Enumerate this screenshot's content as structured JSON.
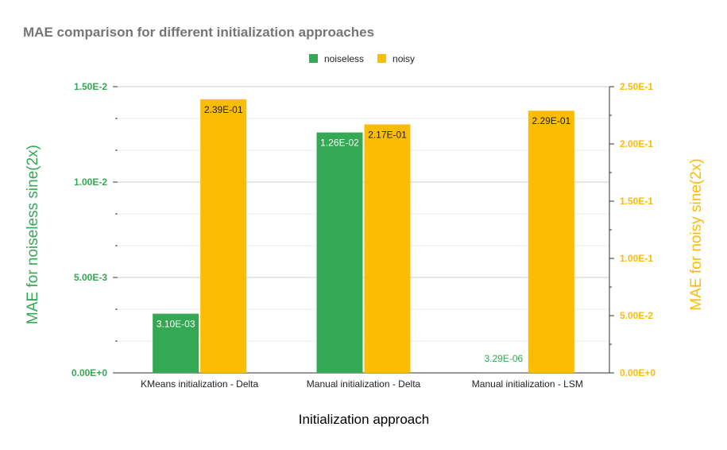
{
  "chart_data": {
    "type": "bar",
    "title": "MAE comparison for different initialization approaches",
    "xlabel": "Initialization approach",
    "ylabel_left": "MAE for noiseless sine(2x)",
    "ylabel_right": "MAE for noisy sine(2x)",
    "categories": [
      "KMeans initialization - Delta",
      "Manual initialization - Delta",
      "Manual initialization - LSM"
    ],
    "series": [
      {
        "name": "noiseless",
        "axis": "left",
        "color": "#34a853",
        "values": [
          0.0031,
          0.0126,
          3.29e-06
        ],
        "labels": [
          "3.10E-03",
          "1.26E-02",
          "3.29E-06"
        ]
      },
      {
        "name": "noisy",
        "axis": "right",
        "color": "#fbbc04",
        "values": [
          0.239,
          0.217,
          0.229
        ],
        "labels": [
          "2.39E-01",
          "2.17E-01",
          "2.29E-01"
        ]
      }
    ],
    "ylim_left": [
      0,
      0.015
    ],
    "ylim_right": [
      0,
      0.25
    ],
    "yticks_left": [
      "0.00E+0",
      "5.00E-3",
      "1.00E-2",
      "1.50E-2"
    ],
    "yticks_right": [
      "0.00E+0",
      "5.00E-2",
      "1.00E-1",
      "1.50E-1",
      "2.00E-1",
      "2.50E-1"
    ],
    "legend_position": "top",
    "grid": true
  }
}
